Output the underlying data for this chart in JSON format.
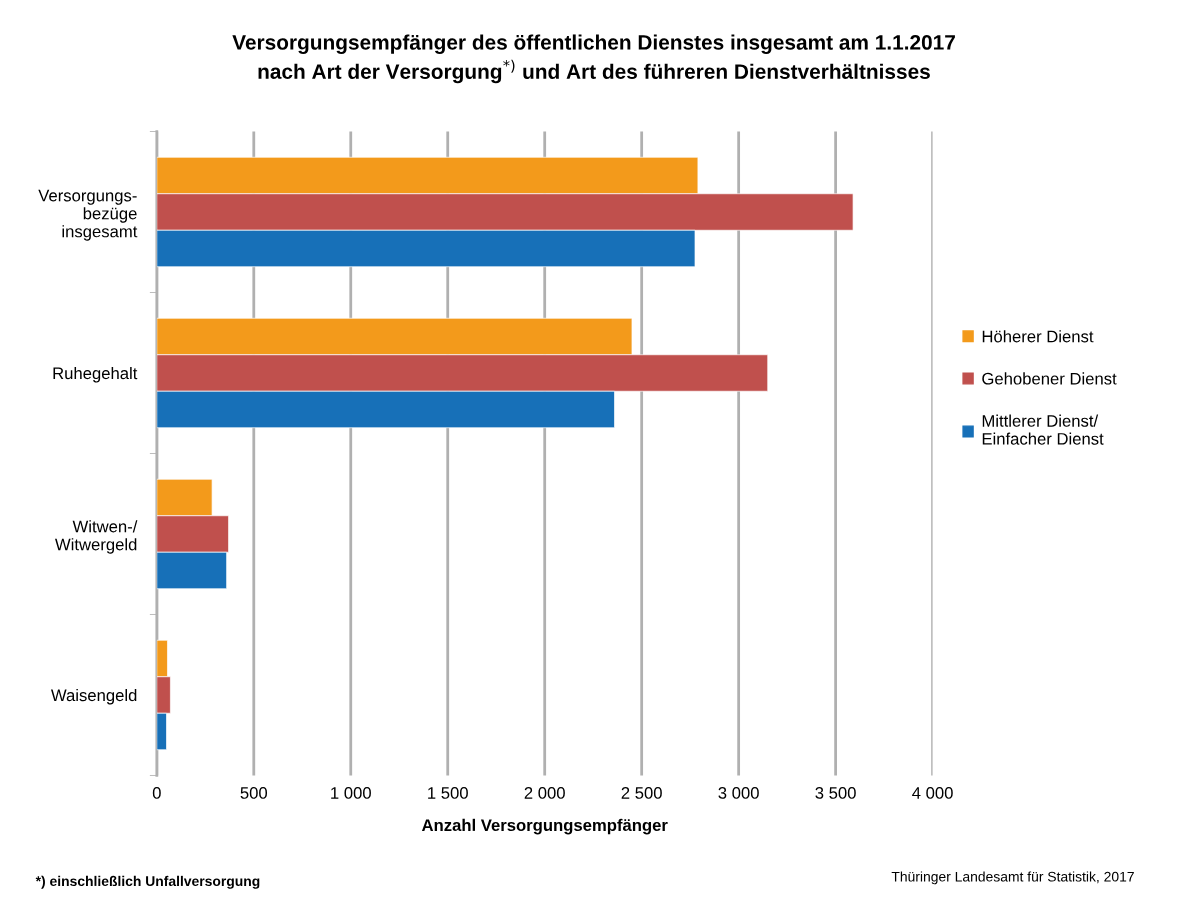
{
  "chart_data": {
    "type": "bar",
    "orientation": "horizontal",
    "title": "Versorgungsempfänger des öffentlichen Dienstes insgesamt am 1.1.2017\nnach Art der Versorgung$^{*)}$ und Art des führeren Dienstverhältnisses",
    "xlabel": "Anzahl Versorgungsempfänger",
    "categories": [
      "Versorgungs-\nbezüge\ninsgesamt",
      "Ruhegehalt",
      "Witwen-/\nWitwergeld",
      "Waisengeld"
    ],
    "series": [
      {
        "name": "Höherer Dienst",
        "color": "#f39a1b",
        "values": [
          2790,
          2450,
          285,
          55
        ]
      },
      {
        "name": "Gehobener Dienst",
        "color": "#c0504d",
        "values": [
          3590,
          3150,
          370,
          70
        ]
      },
      {
        "name": "Mittlerer Dienst/\nEinfacher Dienst",
        "color": "#1770b8",
        "values": [
          2775,
          2360,
          360,
          50
        ]
      }
    ],
    "xlim": [
      0,
      4000
    ],
    "xticks": [
      0,
      {
        "value": 500,
        "label": "500"
      },
      {
        "value": 1000,
        "label": "1 000"
      },
      {
        "value": 1500,
        "label": "1 500"
      },
      {
        "value": 2000,
        "label": "2 000"
      },
      {
        "value": 2500,
        "label": "2 500"
      },
      {
        "value": 3000,
        "label": "3 000"
      },
      {
        "value": 3500,
        "label": "3 500"
      },
      {
        "value": 4000,
        "label": "4 000"
      }
    ],
    "grid": "x",
    "legend": "right",
    "annotations": [
      "*) einschließlich Unfallversorgung",
      "Thüringer Landesamt für Statistik, 2017"
    ]
  }
}
